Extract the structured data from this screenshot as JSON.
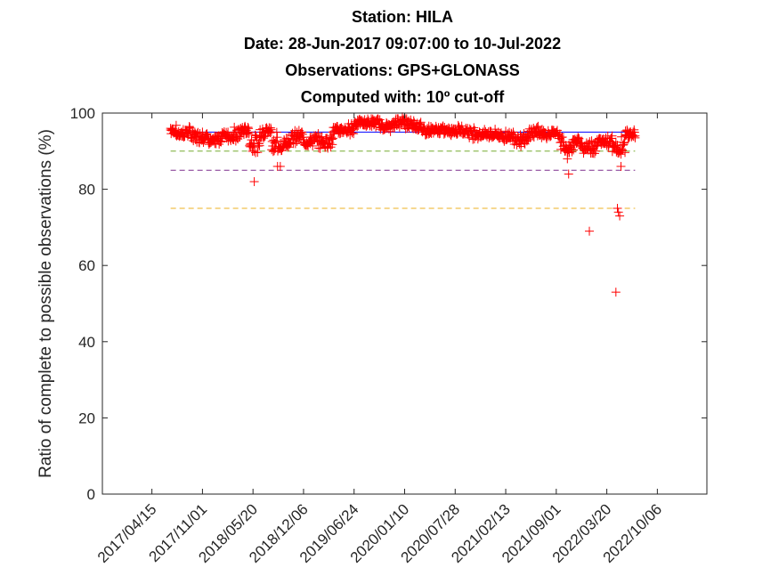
{
  "chart_data": {
    "type": "scatter",
    "title_lines": [
      "Station: HILA",
      "Date: 28-Jun-2017 09:07:00 to 10-Jul-2022",
      "Observations: GPS+GLONASS",
      "Computed with: 10º cut-off"
    ],
    "xlabel": "",
    "ylabel": "Ratio of complete to possible observations (%)",
    "xlim": [
      "2016-10-01",
      "2023-04-20"
    ],
    "ylim": [
      0,
      100
    ],
    "y_ticks": [
      0,
      20,
      40,
      60,
      80,
      100
    ],
    "x_ticks": [
      "2017/04/15",
      "2017/11/01",
      "2018/05/20",
      "2018/12/06",
      "2019/06/24",
      "2020/01/10",
      "2020/07/28",
      "2021/02/13",
      "2021/09/01",
      "2022/03/20",
      "2022/10/06"
    ],
    "grid": false,
    "reference_lines": [
      {
        "y": 95,
        "color": "#0000ff",
        "style": "solid",
        "from": "2017-06-28",
        "to": "2022-07-10"
      },
      {
        "y": 90,
        "color": "#77ac30",
        "style": "dashed",
        "from": "2017-06-28",
        "to": "2022-07-10"
      },
      {
        "y": 85,
        "color": "#7e2f8e",
        "style": "dashed",
        "from": "2017-06-28",
        "to": "2022-07-10"
      },
      {
        "y": 75,
        "color": "#edb120",
        "style": "dashed",
        "from": "2017-06-28",
        "to": "2022-07-10"
      }
    ],
    "series": [
      {
        "marker": "+",
        "color": "#ff0000",
        "points": [
          [
            "2017-06-28",
            96
          ],
          [
            "2017-07-20",
            95
          ],
          [
            "2017-08-15",
            94
          ],
          [
            "2017-09-10",
            96
          ],
          [
            "2017-10-05",
            93
          ],
          [
            "2017-11-01",
            95
          ],
          [
            "2017-11-25",
            93
          ],
          [
            "2017-12-20",
            92
          ],
          [
            "2018-01-15",
            94
          ],
          [
            "2018-02-10",
            95
          ],
          [
            "2018-03-05",
            93
          ],
          [
            "2018-04-01",
            96
          ],
          [
            "2018-05-05",
            95
          ],
          [
            "2018-05-25",
            82
          ],
          [
            "2018-06-15",
            94
          ],
          [
            "2018-07-10",
            96
          ],
          [
            "2018-08-01",
            95
          ],
          [
            "2018-08-25",
            86
          ],
          [
            "2018-09-05",
            86
          ],
          [
            "2018-09-20",
            93
          ],
          [
            "2018-10-15",
            92
          ],
          [
            "2018-11-10",
            95
          ],
          [
            "2018-12-05",
            93
          ],
          [
            "2019-01-01",
            92
          ],
          [
            "2019-02-01",
            94
          ],
          [
            "2019-03-01",
            91
          ],
          [
            "2019-04-01",
            95
          ],
          [
            "2019-05-01",
            96
          ],
          [
            "2019-06-01",
            95
          ],
          [
            "2019-06-24",
            97
          ],
          [
            "2019-07-20",
            98
          ],
          [
            "2019-08-15",
            97
          ],
          [
            "2019-09-10",
            98
          ],
          [
            "2019-10-05",
            97
          ],
          [
            "2019-11-01",
            96
          ],
          [
            "2019-12-01",
            97
          ],
          [
            "2020-01-01",
            99
          ],
          [
            "2020-01-20",
            96
          ],
          [
            "2020-02-15",
            98
          ],
          [
            "2020-03-15",
            96
          ],
          [
            "2020-04-15",
            95
          ],
          [
            "2020-05-15",
            96
          ],
          [
            "2020-06-15",
            95
          ],
          [
            "2020-07-15",
            96
          ],
          [
            "2020-08-15",
            95
          ],
          [
            "2020-09-15",
            96
          ],
          [
            "2020-10-15",
            94
          ],
          [
            "2020-11-15",
            95
          ],
          [
            "2020-12-15",
            94
          ],
          [
            "2021-01-15",
            95
          ],
          [
            "2021-02-15",
            93
          ],
          [
            "2021-03-15",
            95
          ],
          [
            "2021-04-15",
            92
          ],
          [
            "2021-05-15",
            94
          ],
          [
            "2021-06-15",
            96
          ],
          [
            "2021-07-15",
            94
          ],
          [
            "2021-08-15",
            95
          ],
          [
            "2021-09-15",
            94
          ],
          [
            "2021-10-05",
            90
          ],
          [
            "2021-10-15",
            88
          ],
          [
            "2021-10-20",
            84
          ],
          [
            "2021-11-10",
            93
          ],
          [
            "2021-12-10",
            92
          ],
          [
            "2022-01-10",
            69
          ],
          [
            "2022-02-10",
            93
          ],
          [
            "2022-03-10",
            92
          ],
          [
            "2022-04-10",
            94
          ],
          [
            "2022-04-25",
            53
          ],
          [
            "2022-05-01",
            75
          ],
          [
            "2022-05-05",
            74
          ],
          [
            "2022-05-10",
            73
          ],
          [
            "2022-05-15",
            86
          ],
          [
            "2022-06-01",
            94
          ],
          [
            "2022-06-20",
            95
          ],
          [
            "2022-07-10",
            94
          ]
        ]
      }
    ]
  }
}
